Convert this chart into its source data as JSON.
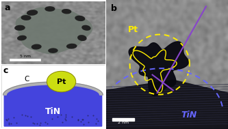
{
  "panel_a_label": "a",
  "panel_b_label": "b",
  "panel_c_label": "c",
  "scalebar_a": "5 nm",
  "scalebar_b": "2 nm",
  "tin_color": "#4444dd",
  "tin_label": "TiN",
  "carbon_color": "#aaaaaa",
  "carbon_label": "C",
  "pt_color": "#ccdd11",
  "pt_label": "Pt",
  "pt_label_b": "Pt",
  "tin_label_b": "TiN",
  "background_color": "#ffffff",
  "panel_a_bg": "#b0b8b0",
  "panel_b_bg": "#7a8a8a",
  "panel_b_tin_color": "#222230",
  "yellow_dot_color": "#ffee00",
  "blue_dot_color": "#6666ff",
  "purple_line_color": "#8844cc"
}
